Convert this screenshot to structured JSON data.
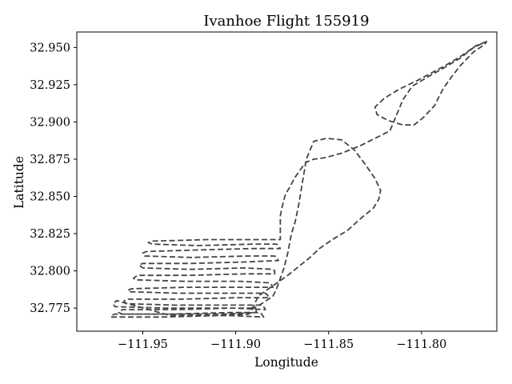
{
  "chart_data": {
    "type": "line",
    "title": "Ivanhoe Flight 155919",
    "xlabel": "Longitude",
    "ylabel": "Latitude",
    "xlim": [
      -111.9855,
      -111.7595
    ],
    "ylim": [
      32.7595,
      32.9604
    ],
    "xticks": [
      -111.95,
      -111.9,
      -111.85,
      -111.8
    ],
    "xtick_labels": [
      "−111.95",
      "−111.90",
      "−111.85",
      "−111.80"
    ],
    "yticks": [
      32.775,
      32.8,
      32.825,
      32.85,
      32.875,
      32.9,
      32.925,
      32.95
    ],
    "ytick_labels": [
      "32.775",
      "32.800",
      "32.825",
      "32.850",
      "32.875",
      "32.900",
      "32.925",
      "32.950"
    ],
    "grid": false,
    "legend": "none",
    "series": [
      {
        "color": "#444444",
        "line_style": "dashed",
        "x": [
          -111.765,
          -111.771,
          -111.779,
          -111.787,
          -111.793,
          -111.802,
          -111.812,
          -111.82,
          -111.825,
          -111.824,
          -111.818,
          -111.81,
          -111.804,
          -111.799,
          -111.793,
          -111.791,
          -111.788,
          -111.784,
          -111.779,
          -111.772,
          -111.766,
          -111.765,
          -111.772,
          -111.779,
          -111.787,
          -111.797,
          -111.805,
          -111.81,
          -111.813,
          -111.817,
          -111.825,
          -111.833,
          -111.843,
          -111.852,
          -111.858,
          -111.862,
          -111.864,
          -111.868,
          -111.871,
          -111.873,
          -111.874,
          -111.875,
          -111.876,
          -111.876,
          -111.89,
          -111.915,
          -111.945,
          -111.947,
          -111.945,
          -111.92,
          -111.89,
          -111.878,
          -111.877,
          -111.876,
          -111.891,
          -111.921,
          -111.948,
          -111.95,
          -111.949,
          -111.924,
          -111.893,
          -111.879,
          -111.878,
          -111.877,
          -111.894,
          -111.924,
          -111.95,
          -111.952,
          -111.95,
          -111.925,
          -111.895,
          -111.88,
          -111.879,
          -111.879,
          -111.895,
          -111.925,
          -111.953,
          -111.955,
          -111.954,
          -111.928,
          -111.898,
          -111.882,
          -111.881,
          -111.88,
          -111.897,
          -111.927,
          -111.956,
          -111.958,
          -111.957,
          -111.931,
          -111.9,
          -111.884,
          -111.883,
          -111.882,
          -111.899,
          -111.93,
          -111.958,
          -111.96,
          -111.959,
          -111.933,
          -111.902,
          -111.886,
          -111.885,
          -111.884,
          -111.901,
          -111.932,
          -111.961,
          -111.963,
          -111.961,
          -111.935,
          -111.903,
          -111.887,
          -111.886,
          -111.885,
          -111.903,
          -111.935,
          -111.964,
          -111.966,
          -111.965,
          -111.938,
          -111.907,
          -111.89,
          -111.889,
          -111.889,
          -111.906,
          -111.937,
          -111.965,
          -111.967,
          -111.967,
          -111.94,
          -111.91,
          -111.893,
          -111.89,
          -111.888,
          -111.88,
          -111.872,
          -111.866,
          -111.86,
          -111.855,
          -111.848,
          -111.84,
          -111.832,
          -111.826,
          -111.823,
          -111.822,
          -111.825,
          -111.83,
          -111.836,
          -111.843,
          -111.851,
          -111.858,
          -111.862,
          -111.864,
          -111.866,
          -111.868,
          -111.87,
          -111.872,
          -111.874,
          -111.876,
          -111.878,
          -111.88,
          -111.886,
          -111.893
        ],
        "y": [
          32.954,
          32.951,
          32.944,
          32.938,
          32.934,
          32.928,
          32.922,
          32.916,
          32.91,
          32.905,
          32.901,
          32.898,
          32.898,
          32.903,
          32.911,
          32.916,
          32.923,
          32.93,
          32.938,
          32.947,
          32.952,
          32.954,
          32.95,
          32.943,
          32.937,
          32.93,
          32.924,
          32.915,
          32.906,
          32.894,
          32.889,
          32.884,
          32.879,
          32.876,
          32.875,
          32.873,
          32.87,
          32.863,
          32.856,
          32.852,
          32.848,
          32.843,
          32.837,
          32.821,
          32.821,
          32.821,
          32.82,
          32.819,
          32.818,
          32.817,
          32.818,
          32.818,
          32.817,
          32.815,
          32.815,
          32.814,
          32.813,
          32.812,
          32.81,
          32.809,
          32.81,
          32.81,
          32.809,
          32.807,
          32.806,
          32.805,
          32.805,
          32.804,
          32.802,
          32.801,
          32.802,
          32.801,
          32.8,
          32.798,
          32.798,
          32.797,
          32.797,
          32.795,
          32.794,
          32.793,
          32.793,
          32.792,
          32.791,
          32.789,
          32.789,
          32.789,
          32.788,
          32.787,
          32.786,
          32.785,
          32.785,
          32.785,
          32.784,
          32.782,
          32.782,
          32.781,
          32.781,
          32.78,
          32.778,
          32.777,
          32.777,
          32.777,
          32.776,
          32.774,
          32.775,
          32.774,
          32.774,
          32.772,
          32.771,
          32.771,
          32.772,
          32.772,
          32.771,
          32.769,
          32.77,
          32.77,
          32.78,
          32.778,
          32.776,
          32.775,
          32.775,
          32.775,
          32.774,
          32.772,
          32.771,
          32.771,
          32.771,
          32.77,
          32.769,
          32.769,
          32.77,
          32.771,
          32.777,
          32.783,
          32.79,
          32.797,
          32.803,
          32.809,
          32.815,
          32.821,
          32.827,
          32.836,
          32.842,
          32.848,
          32.854,
          32.862,
          32.871,
          32.881,
          32.888,
          32.889,
          32.887,
          32.875,
          32.86,
          32.845,
          32.833,
          32.825,
          32.812,
          32.802,
          32.795,
          32.788,
          32.783,
          32.778,
          32.773
        ]
      }
    ]
  }
}
